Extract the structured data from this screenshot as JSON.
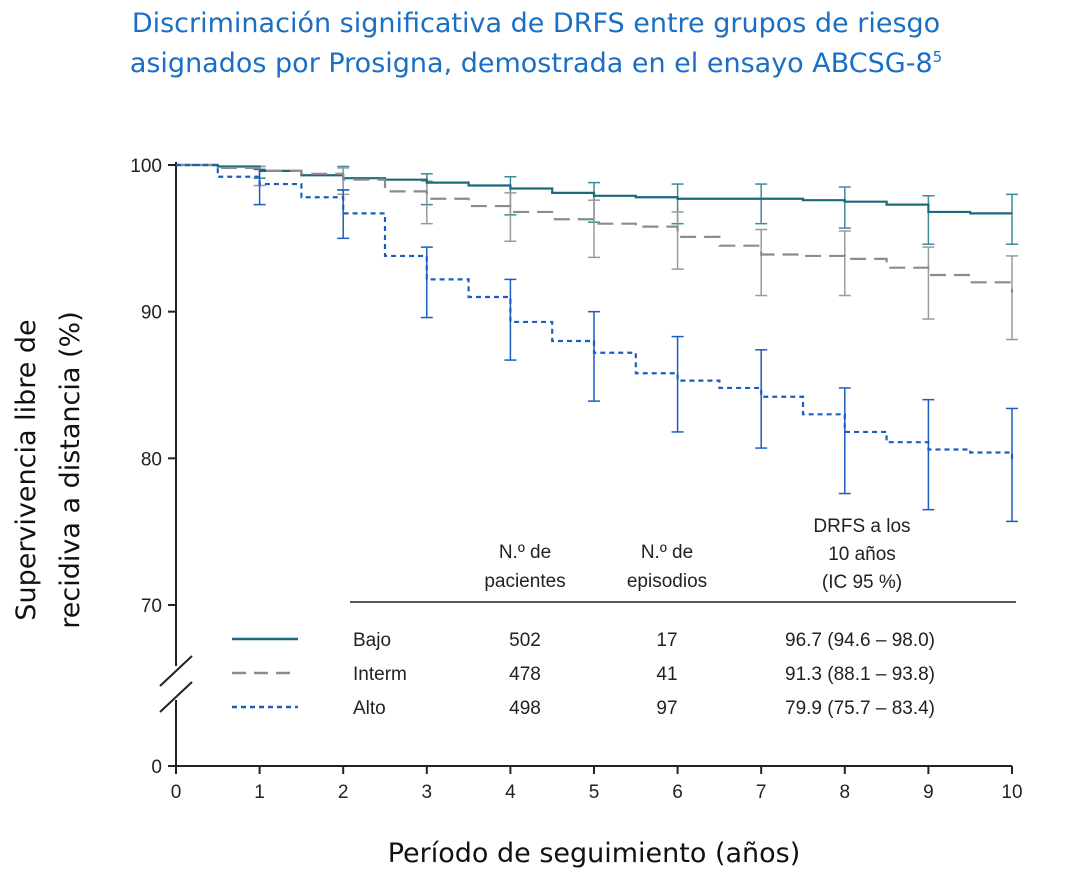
{
  "title_line1": "Discriminación significativa de DRFS entre grupos de riesgo",
  "title_line2": "asignados por Prosigna, demostrada en el ensayo ABCSG-8",
  "title_sup": "5",
  "colors": {
    "title": "#1a6fc4",
    "bajo": "#1b6a7c",
    "interm": "#8c8c8c",
    "alto": "#1a5fc0",
    "axis": "#222222"
  },
  "chart_data": {
    "type": "line",
    "title": "Discriminación significativa de DRFS entre grupos de riesgo asignados por Prosigna, demostrada en el ensayo ABCSG-8",
    "ylabel_line1": "Supervivencia libre de",
    "ylabel_line2": "recidiva a distancia (%)",
    "xlabel": "Período de seguimiento (años)",
    "x_ticks": [
      0,
      1,
      2,
      3,
      4,
      5,
      6,
      7,
      8,
      9,
      10
    ],
    "y_ticks": [
      0,
      70,
      80,
      90,
      100
    ],
    "xlim": [
      0,
      10
    ],
    "ylim": [
      0,
      100
    ],
    "axis_break": "between 0 and 70",
    "series": [
      {
        "name": "Bajo",
        "style": "solid",
        "x": [
          0,
          0.5,
          1.0,
          1.5,
          2.0,
          2.5,
          3.0,
          3.5,
          4.0,
          4.5,
          5.0,
          5.5,
          6.0,
          6.5,
          7.0,
          7.5,
          8.0,
          8.5,
          9.0,
          9.5,
          10.0
        ],
        "y": [
          100,
          99.9,
          99.6,
          99.3,
          99.1,
          99.0,
          98.8,
          98.6,
          98.4,
          98.1,
          97.9,
          97.8,
          97.7,
          97.7,
          97.7,
          97.6,
          97.5,
          97.3,
          96.8,
          96.7,
          96.7
        ],
        "ci_x": [
          1,
          2,
          3,
          4,
          5,
          6,
          7,
          8,
          9,
          10
        ],
        "ci_low": [
          99.1,
          98.3,
          97.3,
          96.6,
          96.1,
          96.0,
          96.0,
          95.7,
          94.6,
          94.6
        ],
        "ci_high": [
          99.9,
          99.9,
          99.4,
          99.2,
          98.8,
          98.7,
          98.7,
          98.5,
          97.9,
          98.0
        ]
      },
      {
        "name": "Interm",
        "style": "dashed",
        "x": [
          0,
          0.5,
          1.0,
          1.5,
          2.0,
          2.5,
          3.0,
          3.5,
          4.0,
          4.5,
          5.0,
          5.5,
          6.0,
          6.5,
          7.0,
          7.5,
          8.0,
          8.5,
          9.0,
          9.5,
          10.0
        ],
        "y": [
          100,
          99.8,
          99.6,
          99.4,
          99.0,
          98.2,
          97.7,
          97.2,
          96.8,
          96.3,
          96.0,
          95.8,
          95.1,
          94.5,
          93.9,
          93.8,
          93.6,
          93.0,
          92.5,
          92.0,
          91.3
        ],
        "ci_x": [
          1,
          2,
          3,
          4,
          5,
          6,
          7,
          8,
          9,
          10
        ],
        "ci_low": [
          98.6,
          98.0,
          96.0,
          94.8,
          93.7,
          92.9,
          91.1,
          91.1,
          89.5,
          88.1
        ],
        "ci_high": [
          99.9,
          99.8,
          98.9,
          98.1,
          97.6,
          96.8,
          95.6,
          95.5,
          94.4,
          93.8
        ]
      },
      {
        "name": "Alto",
        "style": "dotted",
        "x": [
          0,
          0.5,
          1.0,
          1.5,
          2.0,
          2.5,
          3.0,
          3.5,
          4.0,
          4.5,
          5.0,
          5.5,
          6.0,
          6.5,
          7.0,
          7.5,
          8.0,
          8.5,
          9.0,
          9.5,
          10.0
        ],
        "y": [
          100,
          99.2,
          98.7,
          97.8,
          96.7,
          93.8,
          92.2,
          91.0,
          89.3,
          88.0,
          87.2,
          85.8,
          85.3,
          84.8,
          84.2,
          83.0,
          81.8,
          81.1,
          80.6,
          80.4,
          79.9
        ],
        "ci_x": [
          1,
          2,
          3,
          4,
          5,
          6,
          7,
          8,
          9,
          10
        ],
        "ci_low": [
          97.3,
          95.0,
          89.6,
          86.7,
          83.9,
          81.8,
          80.7,
          77.6,
          76.5,
          75.7
        ],
        "ci_high": [
          99.7,
          98.3,
          94.4,
          92.2,
          90.0,
          88.3,
          87.4,
          84.8,
          84.0,
          83.4
        ]
      }
    ]
  },
  "table": {
    "headers": {
      "pacientes_line1": "N.º de",
      "pacientes_line2": "pacientes",
      "episodios_line1": "N.º de",
      "episodios_line2": "episodios",
      "drfs_line1": "DRFS a los",
      "drfs_line2": "10 años",
      "drfs_line3": "(IC 95 %)"
    },
    "rows": [
      {
        "group": "Bajo",
        "pacientes": "502",
        "episodios": "17",
        "drfs": "96.7 (94.6 – 98.0)"
      },
      {
        "group": "Interm",
        "pacientes": "478",
        "episodios": "41",
        "drfs": "91.3 (88.1 – 93.8)"
      },
      {
        "group": "Alto",
        "pacientes": "498",
        "episodios": "97",
        "drfs": "79.9 (75.7 – 83.4)"
      }
    ]
  }
}
